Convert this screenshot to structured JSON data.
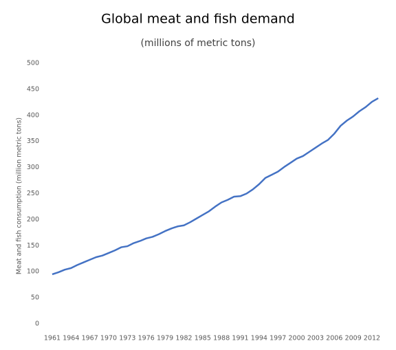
{
  "chart_data": {
    "type": "line",
    "title": "Global meat and fish demand",
    "subtitle": "(millions of metric tons)",
    "y_label": "Meat and fish consumption  (million metric tons)",
    "categories": [
      "1961",
      null,
      null,
      "1964",
      null,
      null,
      "1967",
      null,
      null,
      "1970",
      null,
      null,
      "1973",
      null,
      null,
      "1976",
      null,
      null,
      "1979",
      null,
      null,
      "1982",
      null,
      null,
      "1985",
      null,
      null,
      "1988",
      null,
      null,
      "1991",
      null,
      null,
      "1994",
      null,
      null,
      "1997",
      null,
      null,
      "2000",
      null,
      null,
      "2003",
      null,
      null,
      "2006",
      null,
      null,
      "2009",
      null,
      null,
      "2012",
      null
    ],
    "series": [
      {
        "name": "Meat and fish demand",
        "color": "#4472c4",
        "values": [
          95,
          99,
          104,
          107,
          113,
          118,
          123,
          128,
          131,
          136,
          141,
          147,
          149,
          155,
          159,
          164,
          167,
          172,
          178,
          183,
          187,
          189,
          195,
          202,
          209,
          216,
          225,
          233,
          238,
          244,
          245,
          250,
          258,
          268,
          280,
          286,
          292,
          301,
          309,
          317,
          322,
          330,
          338,
          346,
          353,
          365,
          380,
          390,
          398,
          408,
          416,
          426,
          433
        ]
      }
    ],
    "ylim": [
      0,
      500
    ],
    "yticks": [
      0,
      50,
      100,
      150,
      200,
      250,
      300,
      350,
      400,
      450,
      500
    ],
    "grid": false
  }
}
